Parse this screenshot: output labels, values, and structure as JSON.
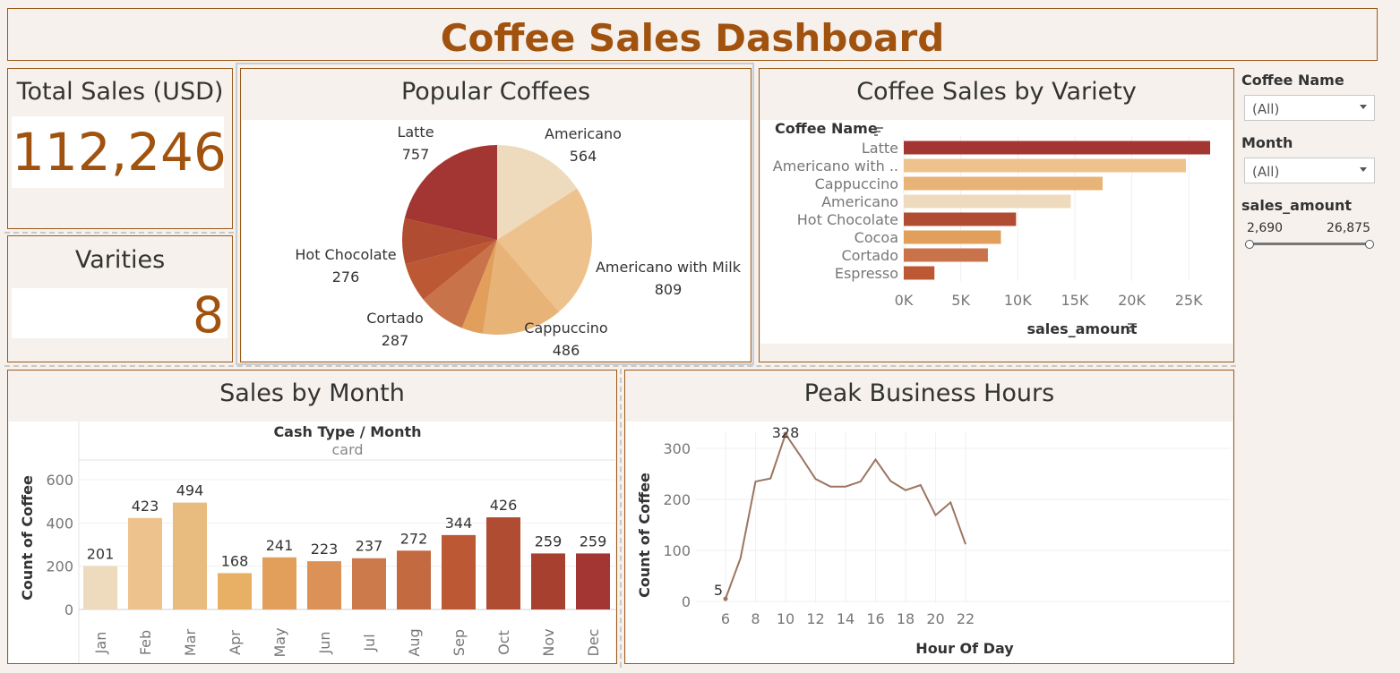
{
  "title": "Coffee Sales Dashboard",
  "colors": {
    "accent": "#a0520e",
    "panel_border": "#9a5a1a",
    "background": "#f6f1ec",
    "line": "#9c7560"
  },
  "total_sales": {
    "title": "Total Sales (USD)",
    "value": "112,246"
  },
  "varieties": {
    "title": "Varities",
    "value": "8"
  },
  "popular": {
    "title": "Popular Coffees",
    "labels": {
      "latte": {
        "name": "Latte",
        "value": "757"
      },
      "americano": {
        "name": "Americano",
        "value": "564"
      },
      "americano_milk": {
        "name": "Americano with Milk",
        "value": "809"
      },
      "cappuccino": {
        "name": "Cappuccino",
        "value": "486"
      },
      "cortado": {
        "name": "Cortado",
        "value": "287"
      },
      "hot_chocolate": {
        "name": "Hot Chocolate",
        "value": "276"
      }
    }
  },
  "variety": {
    "title": "Coffee Sales  by Variety",
    "header": "Coffee Name",
    "xlabel": "sales_amount",
    "ticks": [
      "0K",
      "5K",
      "10K",
      "15K",
      "20K",
      "25K"
    ]
  },
  "month": {
    "title": "Sales by Month",
    "header": "Cash Type  /  Month",
    "subheader": "card",
    "ylabel": "Count of Coffee",
    "yticks": [
      "0",
      "200",
      "400",
      "600"
    ]
  },
  "peak": {
    "title": "Peak Business Hours",
    "ylabel": "Count of Coffee",
    "xlabel": "Hour Of Day",
    "yticks": [
      "0",
      "100",
      "200",
      "300"
    ],
    "xticks": [
      "6",
      "8",
      "10",
      "12",
      "14",
      "16",
      "18",
      "20",
      "22"
    ]
  },
  "filters": {
    "coffee": {
      "label": "Coffee Name",
      "value": "(All)"
    },
    "month": {
      "label": "Month",
      "value": "(All)"
    },
    "sales": {
      "label": "sales_amount",
      "min": "2,690",
      "max": "26,875",
      "range": [
        2690,
        26875
      ]
    }
  },
  "chart_data": [
    {
      "type": "pie",
      "title": "Popular Coffees",
      "categories": [
        "Americano",
        "Americano with Milk",
        "Cappuccino",
        "Espresso",
        "Cortado",
        "Cocoa",
        "Hot Chocolate",
        "Latte"
      ],
      "values": [
        564,
        809,
        486,
        129,
        287,
        239,
        276,
        757
      ],
      "colors": [
        "#eedbbd",
        "#eec28d",
        "#e8b376",
        "#e19f5b",
        "#c9734a",
        "#bc5934",
        "#b04c31",
        "#a33632"
      ]
    },
    {
      "type": "bar",
      "title": "Coffee Sales  by Variety",
      "categories": [
        "Latte",
        "Americano with ..",
        "Cappuccino",
        "Americano",
        "Hot Chocolate",
        "Cocoa",
        "Cortado",
        "Espresso"
      ],
      "values": [
        26875,
        24750,
        17440,
        14650,
        9850,
        8520,
        7380,
        2690
      ],
      "colors": [
        "#a33632",
        "#eec28d",
        "#e8b376",
        "#eedbbd",
        "#b04c31",
        "#e19f5b",
        "#c9734a",
        "#bc5934"
      ],
      "xlabel": "sales_amount",
      "xlim": [
        0,
        27500
      ]
    },
    {
      "type": "bar",
      "title": "Sales by Month",
      "categories": [
        "Jan",
        "Feb",
        "Mar",
        "Apr",
        "May",
        "Jun",
        "Jul",
        "Aug",
        "Sep",
        "Oct",
        "Nov",
        "Dec"
      ],
      "values": [
        201,
        423,
        494,
        168,
        241,
        223,
        237,
        272,
        344,
        426,
        259,
        259
      ],
      "colors": [
        "#eedbbd",
        "#eec28d",
        "#e8bb7e",
        "#e8b064",
        "#e19f5b",
        "#dc9256",
        "#cc7a4c",
        "#c36a41",
        "#bc5934",
        "#b04c31",
        "#a7402f",
        "#a33632"
      ],
      "ylabel": "Count of Coffee",
      "ylim": [
        0,
        600
      ]
    },
    {
      "type": "line",
      "title": "Peak Business Hours",
      "x": [
        6,
        7,
        8,
        9,
        10,
        11,
        12,
        13,
        14,
        15,
        16,
        17,
        18,
        19,
        20,
        21,
        22
      ],
      "y": [
        5,
        85,
        235,
        241,
        328,
        285,
        240,
        225,
        225,
        235,
        278,
        236,
        218,
        228,
        169,
        194,
        112
      ],
      "xlabel": "Hour Of Day",
      "ylabel": "Count of Coffee",
      "xlim": [
        5,
        23
      ],
      "ylim": [
        0,
        330
      ]
    }
  ]
}
